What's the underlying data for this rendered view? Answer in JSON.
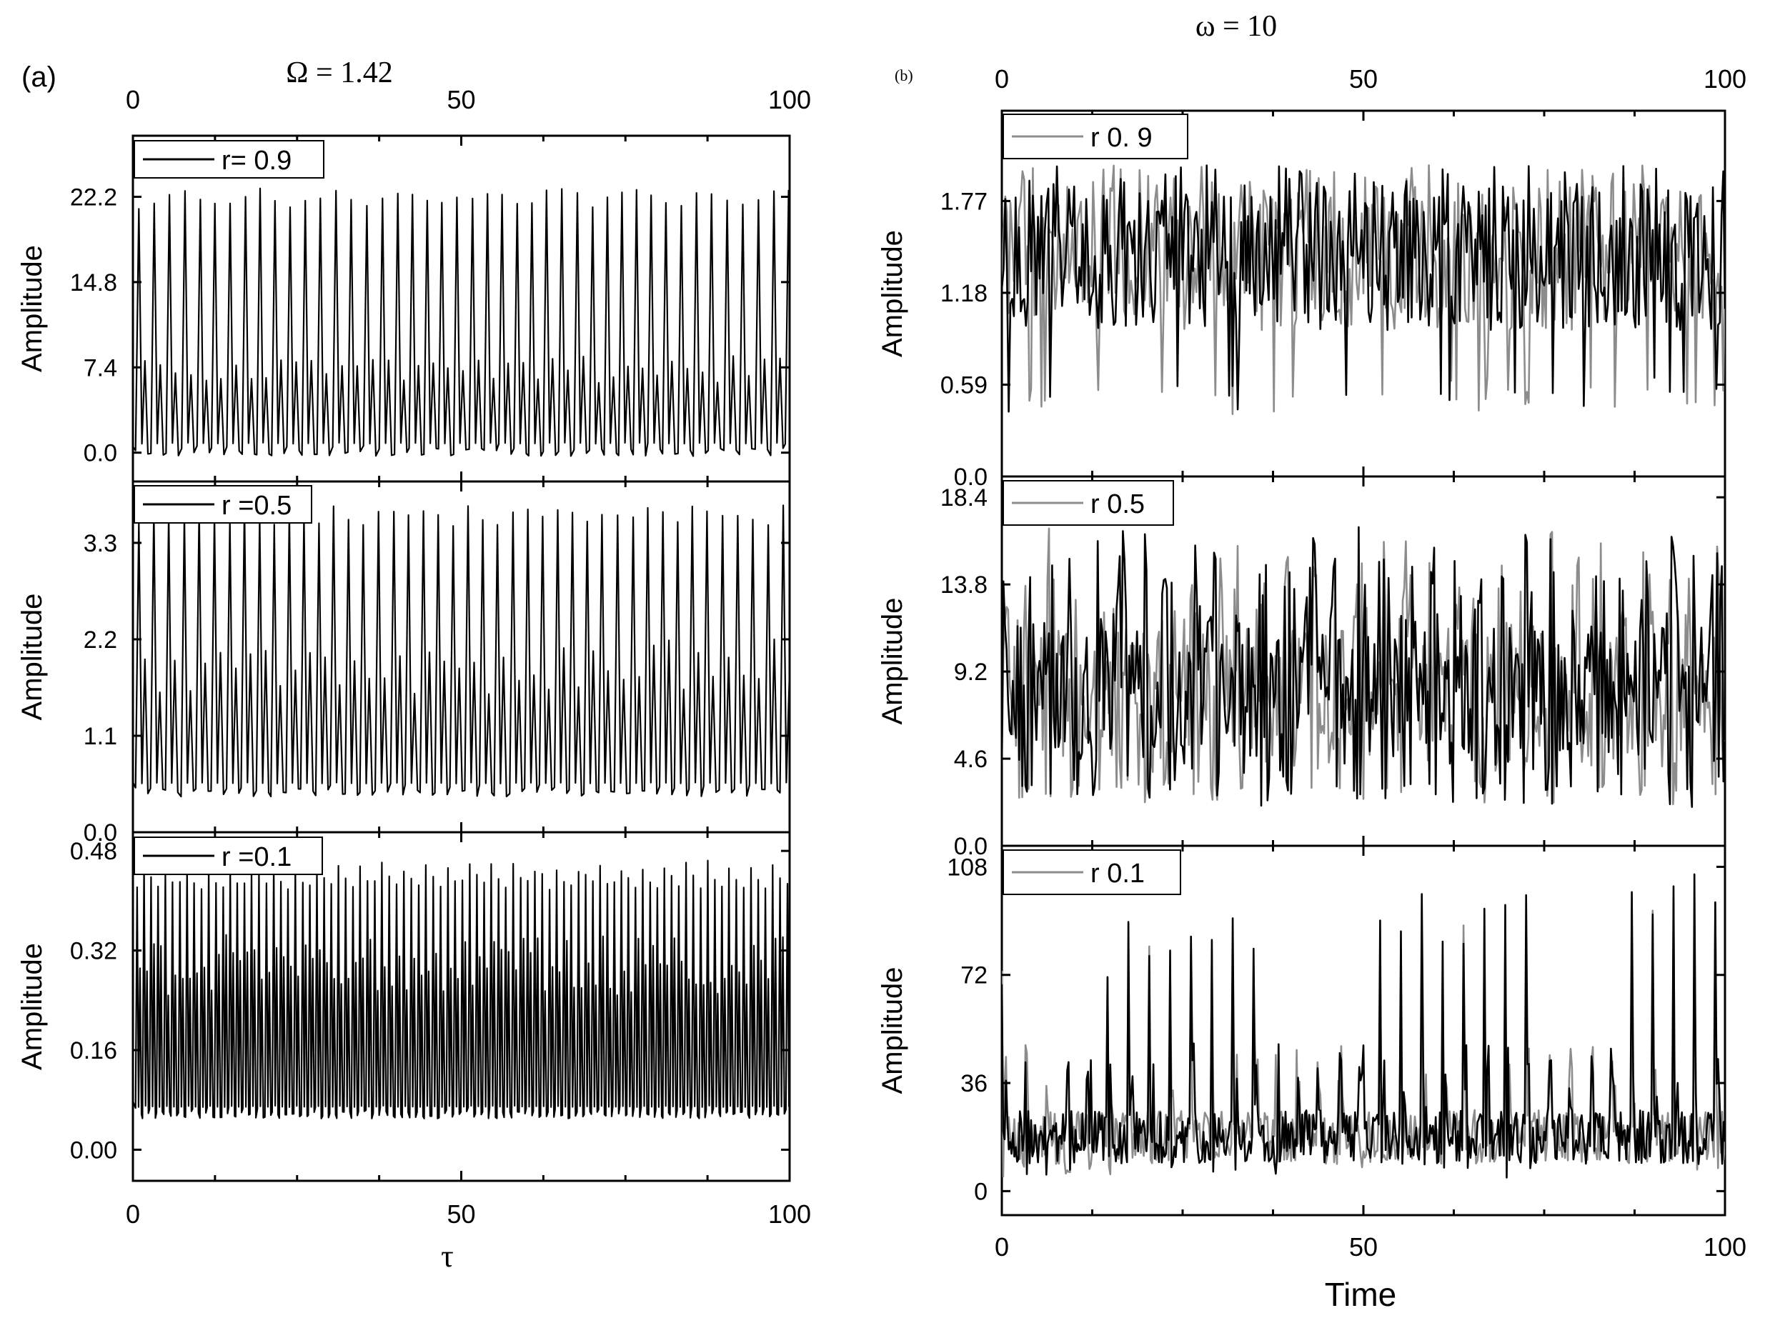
{
  "figure": {
    "background": "#ffffff"
  },
  "chart_data": [
    {
      "panel_label": "(a)",
      "title": "Ω = 1.42",
      "xlabel": "τ",
      "x_range": [
        0,
        100
      ],
      "x_ticks": [
        0,
        50,
        100
      ],
      "x_tick_labels": [
        "0",
        "50",
        "100"
      ],
      "top_ticks": [
        "0",
        "50",
        "100"
      ],
      "line_color": "#000000",
      "subplots": [
        {
          "type": "line",
          "ylabel": "Amplitude",
          "legend": "r= 0.9",
          "ylim": [
            -2.5,
            27.5
          ],
          "y_ticks": [
            0,
            7.4,
            14.8,
            22.2
          ],
          "y_tick_labels": [
            "0.0",
            "7.4",
            "14.8",
            "22.2"
          ],
          "x": [
            0,
            100
          ],
          "signal": {
            "period": 2.3,
            "peaks": [
              21.6,
              22.0,
              22.6,
              23.0,
              22.4
            ],
            "secondary": 8.0,
            "trough": -0.3
          }
        },
        {
          "type": "line",
          "ylabel": "Amplitude",
          "legend": "r =0.5",
          "ylim": [
            0,
            4.0
          ],
          "y_ticks": [
            0,
            1.1,
            2.2,
            3.3
          ],
          "y_tick_labels": [
            "0.0",
            "1.1",
            "2.2",
            "3.3"
          ],
          "x": [
            0,
            100
          ],
          "signal": {
            "period": 2.3,
            "peaks": [
              3.6,
              3.7,
              3.65
            ],
            "secondary": 2.1,
            "trough": 0.4
          }
        },
        {
          "type": "line",
          "ylabel": "Amplitude",
          "legend": "r =0.1",
          "ylim": [
            -0.05,
            0.51
          ],
          "y_ticks": [
            0,
            0.16,
            0.32,
            0.48
          ],
          "y_tick_labels": [
            "0.00",
            "0.16",
            "0.32",
            "0.48"
          ],
          "x": [
            0,
            100
          ],
          "signal": {
            "period": 1.1,
            "peaks": [
              0.43,
              0.46,
              0.44
            ],
            "secondary": 0.33,
            "trough": 0.05
          }
        }
      ]
    },
    {
      "panel_label": "(b)",
      "title": "ω = 10",
      "xlabel": "Time",
      "x_range": [
        0,
        100
      ],
      "x_ticks": [
        0,
        50,
        100
      ],
      "x_tick_labels": [
        "0",
        "50",
        "100"
      ],
      "top_ticks": [
        "0",
        "50",
        "100"
      ],
      "line_colors": [
        "#000000",
        "#8c8c8c"
      ],
      "subplots": [
        {
          "type": "line",
          "ylabel": "Amplitude",
          "legend": "r 0. 9",
          "ylim": [
            0,
            2.35
          ],
          "y_ticks": [
            0,
            0.59,
            1.18,
            1.77
          ],
          "y_tick_labels": [
            "0.0",
            "0.59",
            "1.18",
            "1.77"
          ],
          "x": [
            0,
            100
          ],
          "signal": {
            "mean": 1.42,
            "spread": 0.48,
            "min": 0.4,
            "max": 2.0
          }
        },
        {
          "type": "line",
          "ylabel": "Amplitude",
          "legend": "r 0.5",
          "ylim": [
            0,
            19.5
          ],
          "y_ticks": [
            0,
            4.6,
            9.2,
            13.8,
            18.4
          ],
          "y_tick_labels": [
            "0.0",
            "4.6",
            "9.2",
            "13.8",
            "18.4"
          ],
          "x": [
            0,
            100
          ],
          "signal": {
            "period": 3.3,
            "mean": 8.0,
            "peak": 15.5,
            "low": 2.0
          }
        },
        {
          "type": "line",
          "ylabel": "Amplitude",
          "legend": "r 0.1",
          "ylim": [
            -8,
            115
          ],
          "y_ticks": [
            0,
            36,
            72,
            108
          ],
          "y_tick_labels": [
            "0",
            "36",
            "72",
            "108"
          ],
          "x": [
            0,
            100
          ],
          "signal": {
            "period": 2.9,
            "baseline": 18,
            "peak_start": 85,
            "peak_end": 112
          }
        }
      ]
    }
  ]
}
